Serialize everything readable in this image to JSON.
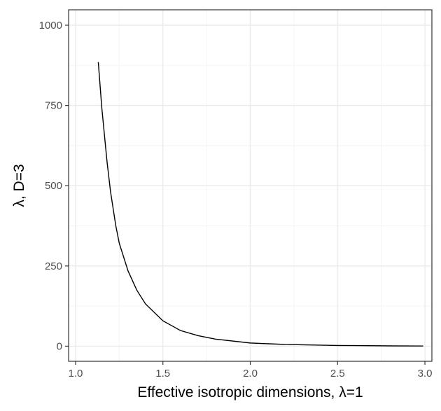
{
  "chart_data": {
    "type": "line",
    "title": "",
    "xlabel": "Effective isotropic dimensions, λ=1",
    "ylabel": "λ, D=3",
    "xlim": [
      0.96,
      3.04
    ],
    "ylim": [
      -47,
      1048
    ],
    "x_ticks": [
      1.0,
      1.5,
      2.0,
      2.5,
      3.0
    ],
    "x_tick_labels": [
      "1.0",
      "1.5",
      "2.0",
      "2.5",
      "3.0"
    ],
    "y_ticks": [
      0,
      250,
      500,
      750,
      1000
    ],
    "y_tick_labels": [
      "0",
      "250",
      "500",
      "750",
      "1000"
    ],
    "grid": true,
    "legend": "none",
    "series": [
      {
        "color": "#000000",
        "x": [
          1.13,
          1.15,
          1.18,
          1.2,
          1.23,
          1.25,
          1.3,
          1.35,
          1.4,
          1.5,
          1.6,
          1.7,
          1.8,
          2.0,
          2.2,
          2.5,
          2.8,
          2.99
        ],
        "y": [
          885,
          743,
          575,
          482,
          376,
          321,
          235,
          175,
          132,
          79,
          49,
          33,
          22,
          10,
          5.4,
          2.3,
          1.0,
          0.6
        ]
      }
    ]
  }
}
